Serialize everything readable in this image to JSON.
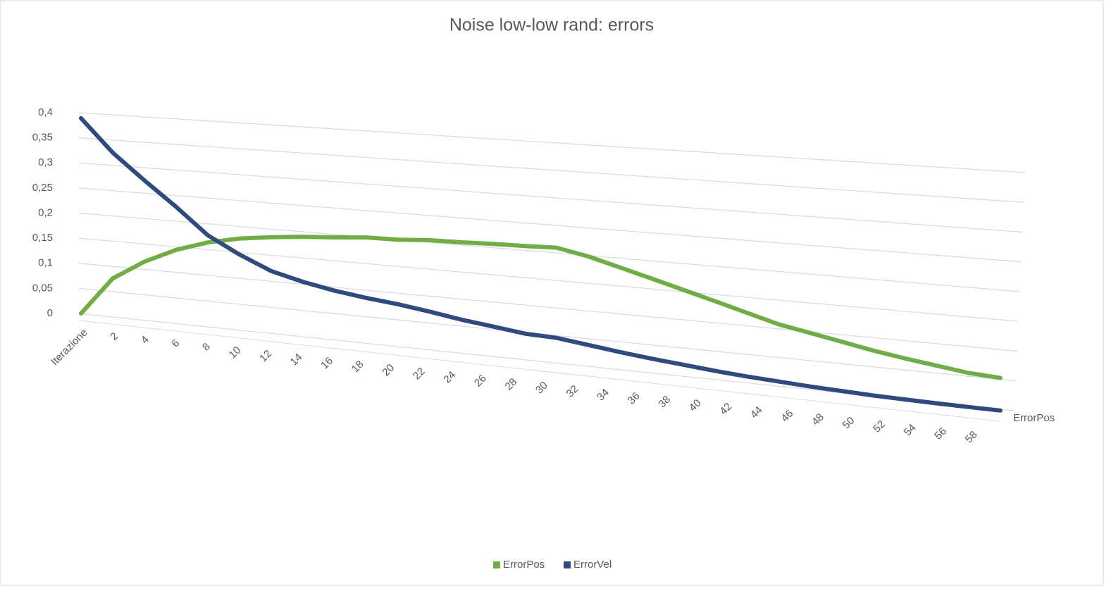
{
  "chart_data": {
    "type": "line3d",
    "title": "Noise low-low rand: errors",
    "categories": [
      "Iterazione",
      "2",
      "4",
      "6",
      "8",
      "10",
      "12",
      "14",
      "16",
      "18",
      "20",
      "22",
      "24",
      "26",
      "28",
      "30",
      "32",
      "34",
      "36",
      "38",
      "40",
      "42",
      "44",
      "46",
      "48",
      "50",
      "52",
      "54",
      "56",
      "58"
    ],
    "depth_label": "ErrorPos",
    "series": [
      {
        "name": "ErrorPos",
        "color": "#70ad47",
        "values": [
          0,
          0.076,
          0.115,
          0.144,
          0.164,
          0.177,
          0.185,
          0.191,
          0.195,
          0.2,
          0.201,
          0.205,
          0.206,
          0.208,
          0.209,
          0.211,
          0.2,
          0.185,
          0.17,
          0.155,
          0.14,
          0.125,
          0.11,
          0.1,
          0.09,
          0.08,
          0.072,
          0.065,
          0.058,
          0.055
        ]
      },
      {
        "name": "ErrorVel",
        "color": "#2f4a7d",
        "values": [
          0.389,
          0.325,
          0.275,
          0.228,
          0.178,
          0.146,
          0.12,
          0.105,
          0.094,
          0.086,
          0.08,
          0.072,
          0.063,
          0.056,
          0.049,
          0.047,
          0.04,
          0.033,
          0.027,
          0.022,
          0.017,
          0.013,
          0.01,
          0.007,
          0.005,
          0.003,
          0.002,
          0.001,
          0.0005,
          0.0002
        ]
      }
    ],
    "ylim": [
      0,
      0.4
    ],
    "yticks": [
      0,
      {
        "value": 0.05,
        "label": "0,05"
      },
      {
        "value": 0.1,
        "label": "0,1"
      },
      {
        "value": 0.15,
        "label": "0,15"
      },
      {
        "value": 0.2,
        "label": "0,2"
      },
      {
        "value": 0.25,
        "label": "0,25"
      },
      {
        "value": 0.3,
        "label": "0,3"
      },
      {
        "value": 0.35,
        "label": "0,35"
      },
      {
        "value": 0.4,
        "label": "0,4"
      }
    ],
    "grid": true,
    "legend": "bottom"
  }
}
